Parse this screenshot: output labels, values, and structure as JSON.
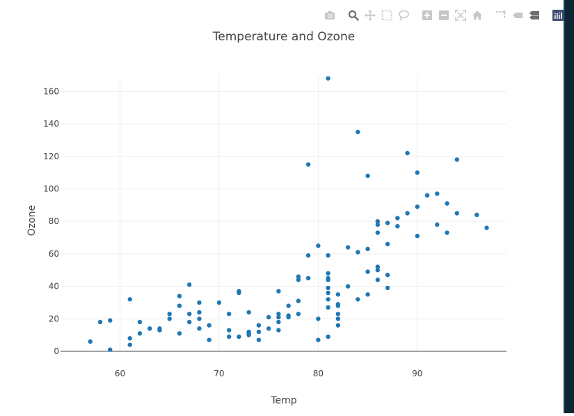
{
  "modebar": {
    "buttons": [
      {
        "icon": "camera-icon",
        "name": "download-png-button"
      },
      {
        "icon": "zoom-icon",
        "name": "zoom-button"
      },
      {
        "icon": "pan-icon",
        "name": "pan-button"
      },
      {
        "icon": "box-select-icon",
        "name": "box-select-button"
      },
      {
        "icon": "lasso-select-icon",
        "name": "lasso-select-button"
      },
      {
        "icon": "zoom-in-icon",
        "name": "zoom-in-button"
      },
      {
        "icon": "zoom-out-icon",
        "name": "zoom-out-button"
      },
      {
        "icon": "autoscale-icon",
        "name": "autoscale-button"
      },
      {
        "icon": "home-icon",
        "name": "reset-axes-button"
      },
      {
        "icon": "spike-lines-icon",
        "name": "spike-lines-button"
      },
      {
        "icon": "hover-closest-icon",
        "name": "hover-closest-button"
      },
      {
        "icon": "hover-compare-icon",
        "name": "hover-compare-button"
      },
      {
        "icon": "plotly-logo-icon",
        "name": "plotly-logo-link"
      }
    ],
    "icon_color": "#c7c7c7",
    "active_icon_color": "#6f6f6f"
  },
  "chart_data": {
    "type": "scatter",
    "title": "Temperature and Ozone",
    "xlabel": "Temp",
    "ylabel": "Ozone",
    "xlim": [
      54,
      99
    ],
    "ylim": [
      0,
      170
    ],
    "xticks": [
      60,
      70,
      80,
      90
    ],
    "yticks": [
      0,
      20,
      40,
      60,
      80,
      100,
      120,
      140,
      160
    ],
    "grid": true,
    "legend": "none",
    "marker_color": "#1f77b4",
    "points": [
      [
        57,
        6
      ],
      [
        58,
        18
      ],
      [
        59,
        19
      ],
      [
        59,
        1
      ],
      [
        61,
        32
      ],
      [
        61,
        8
      ],
      [
        61,
        4
      ],
      [
        62,
        18
      ],
      [
        62,
        11
      ],
      [
        63,
        14
      ],
      [
        64,
        14
      ],
      [
        64,
        13
      ],
      [
        65,
        23
      ],
      [
        65,
        20
      ],
      [
        66,
        34
      ],
      [
        66,
        28
      ],
      [
        66,
        11
      ],
      [
        67,
        41
      ],
      [
        67,
        23
      ],
      [
        67,
        18
      ],
      [
        68,
        30
      ],
      [
        68,
        24
      ],
      [
        68,
        20
      ],
      [
        68,
        14
      ],
      [
        69,
        16
      ],
      [
        69,
        7
      ],
      [
        70,
        30
      ],
      [
        71,
        23
      ],
      [
        71,
        13
      ],
      [
        71,
        9
      ],
      [
        72,
        37
      ],
      [
        72,
        36
      ],
      [
        72,
        9
      ],
      [
        73,
        24
      ],
      [
        73,
        12
      ],
      [
        73,
        11
      ],
      [
        73,
        10
      ],
      [
        74,
        16
      ],
      [
        74,
        12
      ],
      [
        74,
        7
      ],
      [
        75,
        21
      ],
      [
        75,
        14
      ],
      [
        76,
        37
      ],
      [
        76,
        23
      ],
      [
        76,
        21
      ],
      [
        76,
        18
      ],
      [
        76,
        13
      ],
      [
        77,
        28
      ],
      [
        77,
        22
      ],
      [
        77,
        21
      ],
      [
        78,
        46
      ],
      [
        78,
        44
      ],
      [
        78,
        31
      ],
      [
        78,
        23
      ],
      [
        79,
        115
      ],
      [
        79,
        59
      ],
      [
        79,
        45
      ],
      [
        80,
        65
      ],
      [
        80,
        20
      ],
      [
        80,
        7
      ],
      [
        81,
        168
      ],
      [
        81,
        59
      ],
      [
        81,
        48
      ],
      [
        81,
        45
      ],
      [
        81,
        44
      ],
      [
        81,
        39
      ],
      [
        81,
        36
      ],
      [
        81,
        32
      ],
      [
        81,
        27
      ],
      [
        81,
        9
      ],
      [
        82,
        35
      ],
      [
        82,
        29
      ],
      [
        82,
        28
      ],
      [
        82,
        23
      ],
      [
        82,
        20
      ],
      [
        82,
        16
      ],
      [
        83,
        64
      ],
      [
        83,
        40
      ],
      [
        84,
        135
      ],
      [
        84,
        61
      ],
      [
        84,
        32
      ],
      [
        85,
        108
      ],
      [
        85,
        63
      ],
      [
        85,
        49
      ],
      [
        85,
        35
      ],
      [
        86,
        80
      ],
      [
        86,
        78
      ],
      [
        86,
        73
      ],
      [
        86,
        52
      ],
      [
        86,
        50
      ],
      [
        86,
        44
      ],
      [
        87,
        79
      ],
      [
        87,
        66
      ],
      [
        87,
        47
      ],
      [
        87,
        39
      ],
      [
        88,
        82
      ],
      [
        88,
        77
      ],
      [
        89,
        122
      ],
      [
        89,
        85
      ],
      [
        90,
        110
      ],
      [
        90,
        89
      ],
      [
        90,
        71
      ],
      [
        91,
        96
      ],
      [
        92,
        97
      ],
      [
        92,
        78
      ],
      [
        93,
        91
      ],
      [
        93,
        73
      ],
      [
        94,
        118
      ],
      [
        94,
        85
      ],
      [
        96,
        84
      ],
      [
        97,
        76
      ]
    ]
  }
}
